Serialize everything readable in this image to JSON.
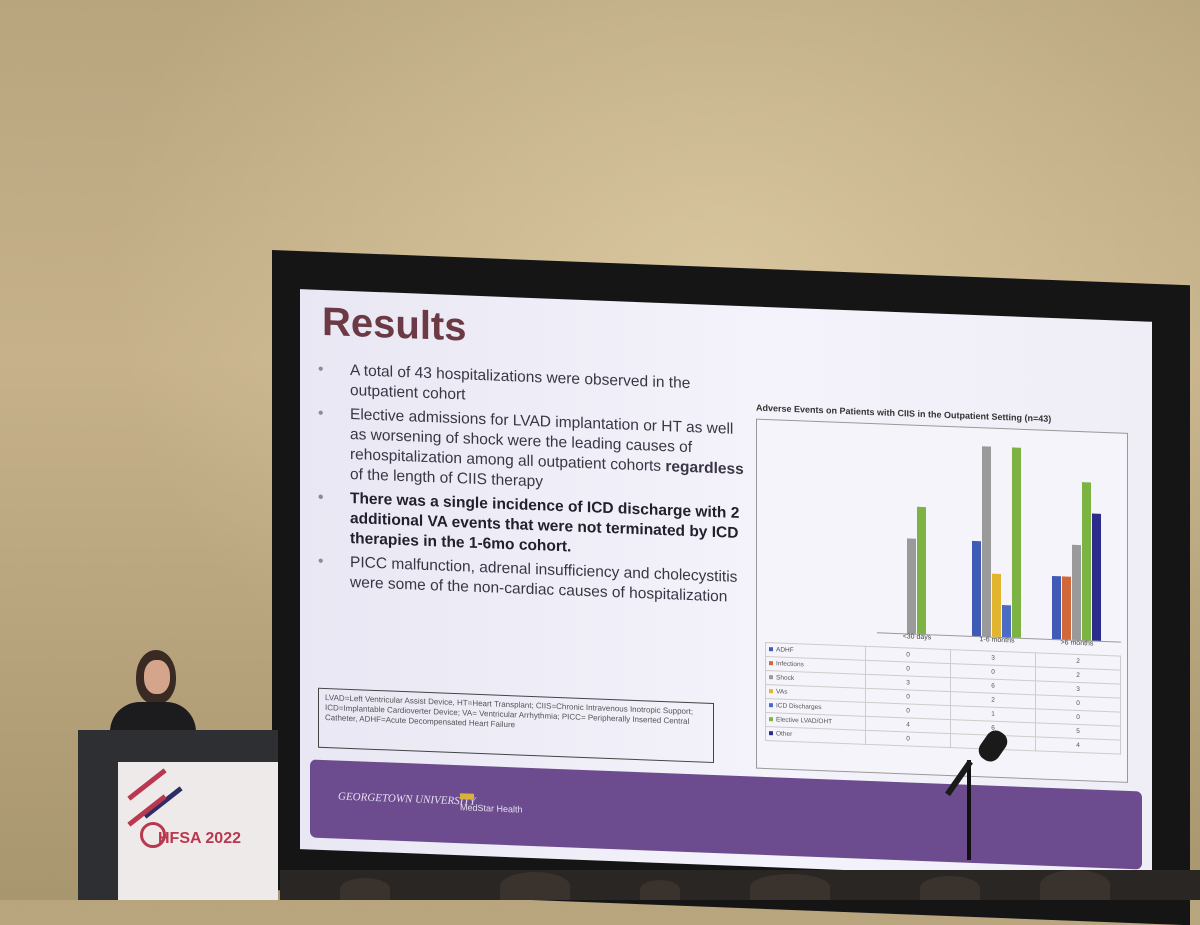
{
  "slide": {
    "title": "Results",
    "bullets": [
      {
        "text": "A total of 43 hospitalizations were observed in the outpatient cohort",
        "bold": false
      },
      {
        "text_before": "Elective admissions for LVAD implantation or HT as well as worsening of shock were the leading causes of rehospitalization among all outpatient cohorts ",
        "text_bold": "regardless",
        "text_after": " of the length of CIIS therapy"
      },
      {
        "text": "There was a single incidence of ICD discharge with 2 additional VA events that were not terminated by ICD therapies in the 1-6mo cohort.",
        "bold": true
      },
      {
        "text": "PICC malfunction, adrenal insufficiency and cholecystitis were some of the non-cardiac causes of hospitalization",
        "bold": false
      }
    ],
    "footnote": "LVAD=Left Ventricular Assist Device, HT=Heart Transplant; CIIS=Chronic Intravenous Inotropic Support; ICD=Implantable Cardioverter Device; VA= Ventricular Arrhythmia; PICC= Peripherally Inserted Central Catheter, ADHF=Acute Decompensated Heart Failure",
    "banner": {
      "university": "GEORGETOWN UNIVERSITY",
      "health": "MedStar Health"
    }
  },
  "chart_data": {
    "type": "bar",
    "title": "Adverse Events on Patients with CIIS in the Outpatient Setting (n=43)",
    "categories": [
      "<30 days",
      "1-6 months",
      ">6 months"
    ],
    "series": [
      {
        "name": "ADHF",
        "values": [
          0,
          3,
          2
        ],
        "color": "#3f5bb5"
      },
      {
        "name": "Infections",
        "values": [
          0,
          0,
          2
        ],
        "color": "#d0683a"
      },
      {
        "name": "Shock",
        "values": [
          3,
          6,
          3
        ],
        "color": "#9a9a9a"
      },
      {
        "name": "VAs",
        "values": [
          0,
          2,
          0
        ],
        "color": "#e2b52e"
      },
      {
        "name": "ICD Discharges",
        "values": [
          0,
          1,
          0
        ],
        "color": "#4a6cc4"
      },
      {
        "name": "Elective LVAD/OHT",
        "values": [
          4,
          6,
          5
        ],
        "color": "#7cb342"
      },
      {
        "name": "Other",
        "values": [
          0,
          0,
          4
        ],
        "color": "#2c2c8c"
      }
    ],
    "ylim": [
      0,
      6
    ]
  },
  "venue": {
    "podium_logo": "HFSA 2022"
  }
}
